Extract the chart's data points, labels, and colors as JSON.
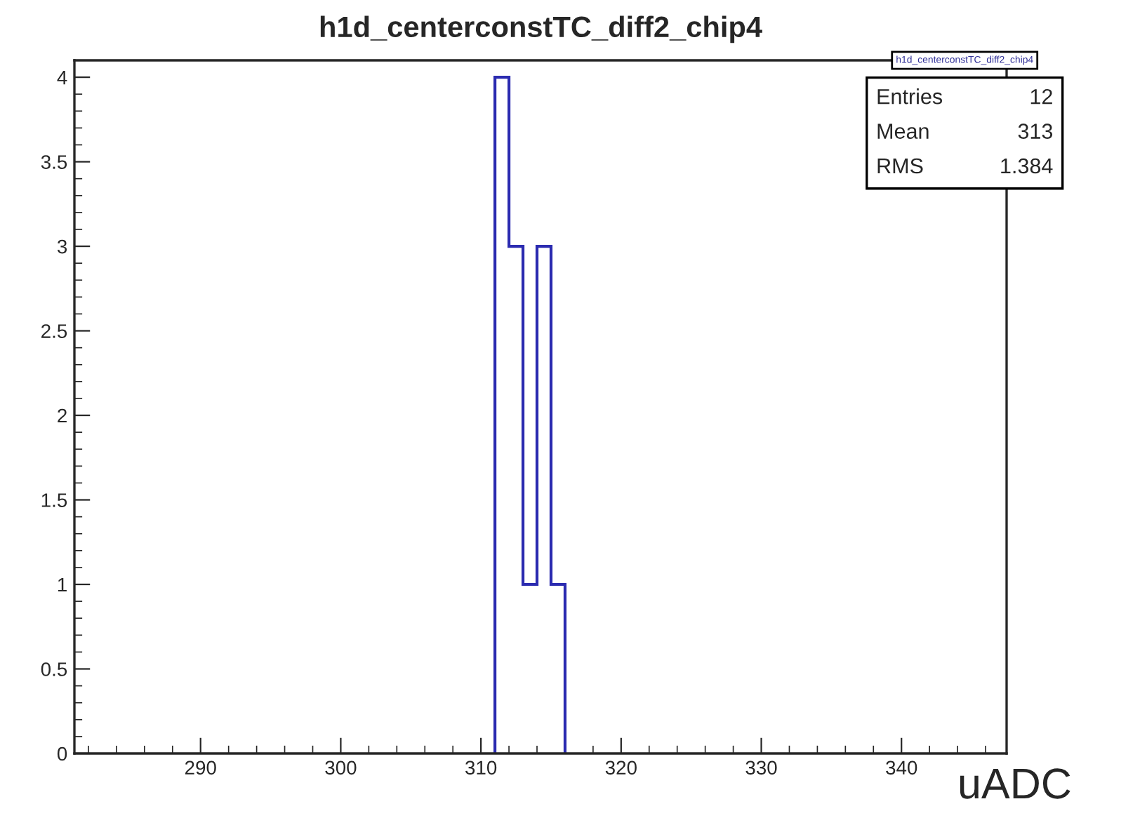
{
  "chart_data": {
    "type": "histogram",
    "title": "h1d_centerconstTC_diff2_chip4",
    "xlabel": "uADC",
    "bins": [
      311,
      312,
      313,
      314,
      315,
      316
    ],
    "values": [
      4,
      3,
      1,
      3,
      1
    ],
    "color": "#2b2bb0",
    "xlim": [
      281,
      347.5
    ],
    "xticks": [
      290,
      300,
      310,
      320,
      330,
      340
    ],
    "ylim": [
      0,
      4.1
    ],
    "yticks": [
      0,
      0.5,
      1,
      1.5,
      2,
      2.5,
      3,
      3.5,
      4
    ],
    "grid": false,
    "legend": false,
    "annotations": [
      "h1d_centerconstTC_diff2_chip4",
      "Entries",
      "12",
      "Mean",
      "313",
      "RMS",
      "1.384"
    ]
  }
}
